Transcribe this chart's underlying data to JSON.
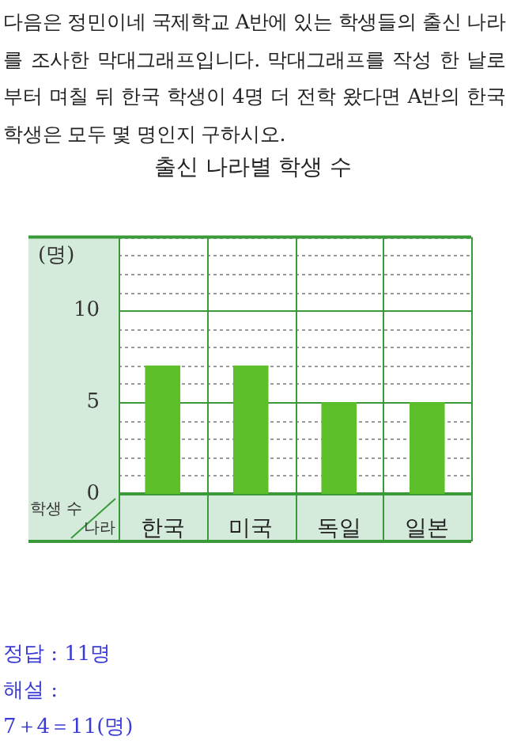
{
  "chart_data": {
    "type": "bar",
    "title": "출신 나라별 학생 수",
    "ylabel": "(명)",
    "xlabel": "나라",
    "annotations": [
      "다음은 정민이네 국제학교 A반에 있는 학생들의 출신 나라를 조사한 막대그래프입니다. 막대그래프를 작성 한 날로부터 며칠 뒤 한국 학생이 4명 더 전학 왔다면 A반의 한국학생은 모두 몇 명인지 구하시오.",
      "학생 수",
      "정답 : 11명",
      "해설 :",
      "7＋4＝11(명)"
    ],
    "categories": [
      "한국",
      "미국",
      "독일",
      "일본"
    ],
    "values": [
      7,
      7,
      5,
      5
    ],
    "color": "#5cbf2a",
    "ylim": [
      0,
      14
    ],
    "yticks": [
      0,
      {
        "value": 1,
        "label": null
      },
      {
        "value": 2,
        "label": null
      },
      {
        "value": 3,
        "label": null
      },
      {
        "value": 4,
        "label": null
      },
      5,
      {
        "value": 6,
        "label": null
      },
      {
        "value": 7,
        "label": null
      },
      {
        "value": 8,
        "label": null
      },
      {
        "value": 9,
        "label": null
      },
      10,
      {
        "value": 11,
        "label": null
      },
      {
        "value": 12,
        "label": null
      },
      {
        "value": 13,
        "label": null
      },
      {
        "value": 14,
        "label": null
      }
    ],
    "grid": true
  }
}
